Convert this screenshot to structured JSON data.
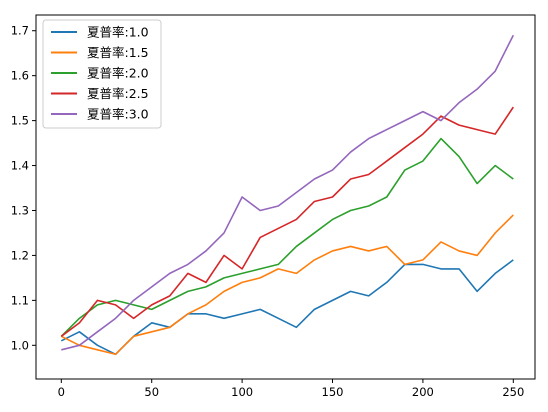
{
  "chart_data": {
    "type": "line",
    "title": "",
    "xlabel": "",
    "ylabel": "",
    "xlim": [
      -14,
      262
    ],
    "ylim": [
      0.925,
      1.735
    ],
    "xticks": [
      0,
      50,
      100,
      150,
      200,
      250
    ],
    "yticks": [
      1.0,
      1.1,
      1.2,
      1.3,
      1.4,
      1.5,
      1.6,
      1.7
    ],
    "xtick_labels": [
      "0",
      "50",
      "100",
      "150",
      "200",
      "250"
    ],
    "ytick_labels": [
      "1.0",
      "1.1",
      "1.2",
      "1.3",
      "1.4",
      "1.5",
      "1.6",
      "1.7"
    ],
    "grid": false,
    "legend_position": "top-left",
    "series": [
      {
        "name": "夏普率:1.0",
        "color": "#1f77b4",
        "x": [
          0,
          10,
          20,
          30,
          40,
          50,
          60,
          70,
          80,
          90,
          100,
          110,
          120,
          130,
          140,
          150,
          160,
          170,
          180,
          190,
          200,
          210,
          220,
          230,
          240,
          250
        ],
        "values": [
          1.01,
          1.03,
          1.0,
          0.98,
          1.02,
          1.05,
          1.04,
          1.07,
          1.07,
          1.06,
          1.07,
          1.08,
          1.06,
          1.04,
          1.08,
          1.1,
          1.12,
          1.11,
          1.14,
          1.18,
          1.18,
          1.17,
          1.17,
          1.12,
          1.16,
          1.19
        ]
      },
      {
        "name": "夏普率:1.5",
        "color": "#ff7f0e",
        "x": [
          0,
          10,
          20,
          30,
          40,
          50,
          60,
          70,
          80,
          90,
          100,
          110,
          120,
          130,
          140,
          150,
          160,
          170,
          180,
          190,
          200,
          210,
          220,
          230,
          240,
          250
        ],
        "values": [
          1.02,
          1.0,
          0.99,
          0.98,
          1.02,
          1.03,
          1.04,
          1.07,
          1.09,
          1.12,
          1.14,
          1.15,
          1.17,
          1.16,
          1.19,
          1.21,
          1.22,
          1.21,
          1.22,
          1.18,
          1.19,
          1.23,
          1.21,
          1.2,
          1.25,
          1.29
        ]
      },
      {
        "name": "夏普率:2.0",
        "color": "#2ca02c",
        "x": [
          0,
          10,
          20,
          30,
          40,
          50,
          60,
          70,
          80,
          90,
          100,
          110,
          120,
          130,
          140,
          150,
          160,
          170,
          180,
          190,
          200,
          210,
          220,
          230,
          240,
          250
        ],
        "values": [
          1.02,
          1.06,
          1.09,
          1.1,
          1.09,
          1.08,
          1.1,
          1.12,
          1.13,
          1.15,
          1.16,
          1.17,
          1.18,
          1.22,
          1.25,
          1.28,
          1.3,
          1.31,
          1.33,
          1.39,
          1.41,
          1.46,
          1.42,
          1.36,
          1.4,
          1.37
        ]
      },
      {
        "name": "夏普率:2.5",
        "color": "#d62728",
        "x": [
          0,
          10,
          20,
          30,
          40,
          50,
          60,
          70,
          80,
          90,
          100,
          110,
          120,
          130,
          140,
          150,
          160,
          170,
          180,
          190,
          200,
          210,
          220,
          230,
          240,
          250
        ],
        "values": [
          1.02,
          1.05,
          1.1,
          1.09,
          1.06,
          1.09,
          1.11,
          1.16,
          1.14,
          1.2,
          1.17,
          1.24,
          1.26,
          1.28,
          1.32,
          1.33,
          1.37,
          1.38,
          1.41,
          1.44,
          1.47,
          1.51,
          1.49,
          1.48,
          1.47,
          1.53
        ]
      },
      {
        "name": "夏普率:3.0",
        "color": "#9467bd",
        "x": [
          0,
          10,
          20,
          30,
          40,
          50,
          60,
          70,
          80,
          90,
          100,
          110,
          120,
          130,
          140,
          150,
          160,
          170,
          180,
          190,
          200,
          210,
          220,
          230,
          240,
          250
        ],
        "values": [
          0.99,
          1.0,
          1.03,
          1.06,
          1.1,
          1.13,
          1.16,
          1.18,
          1.21,
          1.25,
          1.33,
          1.3,
          1.31,
          1.34,
          1.37,
          1.39,
          1.43,
          1.46,
          1.48,
          1.5,
          1.52,
          1.5,
          1.54,
          1.57,
          1.61,
          1.69
        ]
      }
    ]
  }
}
